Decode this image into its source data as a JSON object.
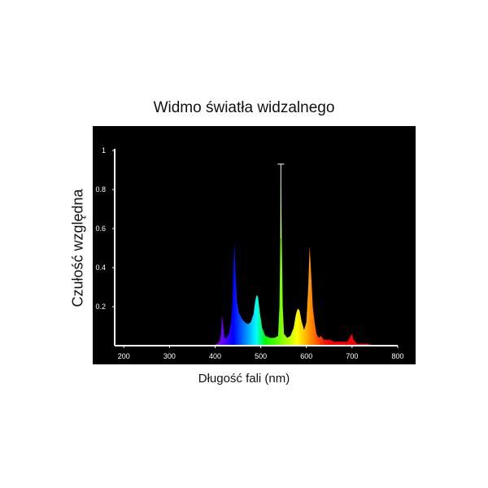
{
  "chart_data": {
    "type": "area",
    "title": "Widmo światła widzalnego",
    "xlabel": "Długość fali (nm)",
    "ylabel": "Czułość względna",
    "xlim": [
      180,
      800
    ],
    "ylim": [
      0,
      1
    ],
    "x_ticks": [
      "200",
      "300",
      "400",
      "500",
      "600",
      "700",
      "800"
    ],
    "y_ticks": [
      "0.2",
      "0.4",
      "0.6",
      "0.8",
      "1"
    ],
    "grid": false,
    "background": "#000000",
    "series": [
      {
        "points": [
          [
            395,
            0
          ],
          [
            405,
            0.01
          ],
          [
            410,
            0.02
          ],
          [
            413,
            0.06
          ],
          [
            415,
            0.16
          ],
          [
            417,
            0.12
          ],
          [
            420,
            0.04
          ],
          [
            425,
            0.04
          ],
          [
            430,
            0.06
          ],
          [
            435,
            0.12
          ],
          [
            438,
            0.22
          ],
          [
            440,
            0.38
          ],
          [
            442,
            0.53
          ],
          [
            445,
            0.36
          ],
          [
            448,
            0.22
          ],
          [
            452,
            0.17
          ],
          [
            458,
            0.14
          ],
          [
            465,
            0.12
          ],
          [
            472,
            0.11
          ],
          [
            478,
            0.12
          ],
          [
            484,
            0.16
          ],
          [
            488,
            0.23
          ],
          [
            491,
            0.26
          ],
          [
            494,
            0.25
          ],
          [
            498,
            0.17
          ],
          [
            503,
            0.09
          ],
          [
            510,
            0.05
          ],
          [
            520,
            0.04
          ],
          [
            530,
            0.04
          ],
          [
            538,
            0.05
          ],
          [
            541,
            0.2
          ],
          [
            543,
            0.55
          ],
          [
            544,
            0.93
          ],
          [
            546,
            0.55
          ],
          [
            548,
            0.2
          ],
          [
            551,
            0.06
          ],
          [
            558,
            0.04
          ],
          [
            565,
            0.05
          ],
          [
            572,
            0.09
          ],
          [
            577,
            0.16
          ],
          [
            581,
            0.19
          ],
          [
            585,
            0.18
          ],
          [
            590,
            0.12
          ],
          [
            595,
            0.08
          ],
          [
            600,
            0.12
          ],
          [
            604,
            0.3
          ],
          [
            607,
            0.51
          ],
          [
            610,
            0.38
          ],
          [
            614,
            0.2
          ],
          [
            618,
            0.12
          ],
          [
            622,
            0.06
          ],
          [
            627,
            0.04
          ],
          [
            632,
            0.05
          ],
          [
            638,
            0.03
          ],
          [
            645,
            0.03
          ],
          [
            652,
            0.03
          ],
          [
            660,
            0.02
          ],
          [
            670,
            0.02
          ],
          [
            680,
            0.02
          ],
          [
            690,
            0.02
          ],
          [
            697,
            0.05
          ],
          [
            700,
            0.06
          ],
          [
            703,
            0.03
          ],
          [
            710,
            0.01
          ],
          [
            730,
            0.01
          ],
          [
            755,
            0
          ]
        ]
      }
    ]
  }
}
